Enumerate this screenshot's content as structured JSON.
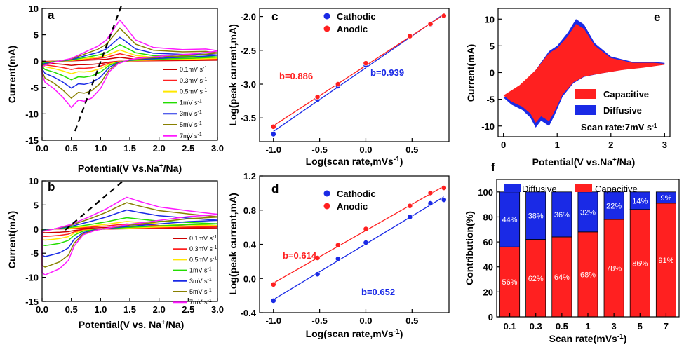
{
  "colors": {
    "red": "#ff2020",
    "blue": "#1a2ae6",
    "yellow": "#ffe800",
    "green": "#22dd00",
    "olive": "#888000",
    "magenta": "#ff1aff",
    "darkred": "#cc0000"
  },
  "chart_data": [
    {
      "panel": "a",
      "type": "line",
      "xlabel_pre": "Potential(V Vs.Na",
      "xlabel_sup": "+",
      "xlabel_post": "/Na)",
      "ylabel": "Current(mA)",
      "xlim": [
        0.0,
        3.0
      ],
      "ylim": [
        -15,
        10
      ],
      "xticks": [
        "0.0",
        "0.5",
        "1.0",
        "1.5",
        "2.0",
        "2.5",
        "3.0"
      ],
      "yticks": [
        "-15",
        "-10",
        "-5",
        "0",
        "5",
        "10"
      ],
      "series": [
        {
          "name": "0.1mV s",
          "sup": "-1",
          "color": "#cc0000",
          "scale": 0.09
        },
        {
          "name": "0.3mV s",
          "sup": "-1",
          "color": "#ff2020",
          "scale": 0.18
        },
        {
          "name": "0.5mV s",
          "sup": "-1",
          "color": "#ffe800",
          "scale": 0.27
        },
        {
          "name": "1mV s",
          "sup": "-1",
          "color": "#22dd00",
          "scale": 0.4
        },
        {
          "name": "3mV s",
          "sup": "-1",
          "color": "#1a2ae6",
          "scale": 0.58
        },
        {
          "name": "5mV s",
          "sup": "-1",
          "color": "#888000",
          "scale": 0.8
        },
        {
          "name": "7mV s",
          "sup": "-1",
          "color": "#ff1aff",
          "scale": 1.0
        }
      ]
    },
    {
      "panel": "b",
      "type": "line",
      "xlabel_pre": "Potential(V vs. Na",
      "xlabel_sup": "+",
      "xlabel_post": "/Na)",
      "ylabel": "Current(mA)",
      "xlim": [
        0.0,
        3.0
      ],
      "ylim": [
        -15,
        10
      ],
      "xticks": [
        "0.0",
        "0.5",
        "1.0",
        "1.5",
        "2.0",
        "2.5",
        "3.0"
      ],
      "yticks": [
        "-15",
        "-10",
        "-5",
        "0",
        "5",
        "10"
      ],
      "series": [
        {
          "name": "0.1mV s",
          "sup": "-1",
          "color": "#cc0000",
          "scale": 0.08
        },
        {
          "name": "0.3mV s",
          "sup": "-1",
          "color": "#ff2020",
          "scale": 0.16
        },
        {
          "name": "0.5mV s",
          "sup": "-1",
          "color": "#ffe800",
          "scale": 0.24
        },
        {
          "name": "1mV s",
          "sup": "-1",
          "color": "#22dd00",
          "scale": 0.36
        },
        {
          "name": "3mV s",
          "sup": "-1",
          "color": "#1a2ae6",
          "scale": 0.6
        },
        {
          "name": "5mV s",
          "sup": "-1",
          "color": "#888000",
          "scale": 0.83
        },
        {
          "name": "7mV s",
          "sup": "-1",
          "color": "#ff1aff",
          "scale": 1.0
        }
      ]
    },
    {
      "panel": "c",
      "type": "scatter",
      "xlabel_pre": "Log(scan rate,mVs",
      "xlabel_sup": "-1",
      "xlabel_post": ")",
      "ylabel": "Log(peak current,mA)",
      "xlim": [
        -1.15,
        0.9
      ],
      "ylim": [
        -3.85,
        -1.88
      ],
      "xticks": [
        "-1.0",
        "-0.5",
        "0.0",
        "0.5"
      ],
      "xtick_values": [
        -1.0,
        -0.5,
        0.0,
        0.5
      ],
      "yticks": [
        "-3.5",
        "-3.0",
        "-2.5",
        "-2.0"
      ],
      "ytick_values": [
        -3.5,
        -3.0,
        -2.5,
        -2.0
      ],
      "series": [
        {
          "name": "Cathodic",
          "color": "#1a2ae6",
          "x": [
            -1.0,
            -0.523,
            -0.301,
            0.0,
            0.477,
            0.699,
            0.845
          ],
          "y": [
            -3.74,
            -3.23,
            -3.03,
            -2.72,
            -2.29,
            -2.12,
            -1.99
          ]
        },
        {
          "name": "Anodic",
          "color": "#ff2020",
          "x": [
            -1.0,
            -0.523,
            -0.301,
            0.0,
            0.477,
            0.699,
            0.845
          ],
          "y": [
            -3.63,
            -3.19,
            -3.0,
            -2.69,
            -2.29,
            -2.11,
            -1.99
          ]
        }
      ],
      "annotations": [
        {
          "text": "b=0.886",
          "color": "#ff2020"
        },
        {
          "text": "b=0.939",
          "color": "#1a2ae6"
        }
      ]
    },
    {
      "panel": "d",
      "type": "scatter",
      "xlabel_pre": "Log(scan rate,mVs",
      "xlabel_sup": "-1",
      "xlabel_post": ")",
      "ylabel": "Log(peak current,mA)",
      "xlim": [
        -1.15,
        0.9
      ],
      "ylim": [
        -0.4,
        1.2
      ],
      "xticks": [
        "-1.0",
        "-0.5",
        "0.0",
        "0.5"
      ],
      "xtick_values": [
        -1.0,
        -0.5,
        0.0,
        0.5
      ],
      "yticks": [
        "-0.4",
        "0.0",
        "0.4",
        "0.8",
        "1.2"
      ],
      "ytick_values": [
        -0.4,
        0.0,
        0.4,
        0.8,
        1.2
      ],
      "series": [
        {
          "name": "Cathodic",
          "color": "#1a2ae6",
          "x": [
            -1.0,
            -0.523,
            -0.301,
            0.0,
            0.477,
            0.699,
            0.845
          ],
          "y": [
            -0.26,
            0.05,
            0.23,
            0.42,
            0.72,
            0.88,
            0.92
          ]
        },
        {
          "name": "Anodic",
          "color": "#ff2020",
          "x": [
            -1.0,
            -0.523,
            -0.301,
            0.0,
            0.477,
            0.699,
            0.845
          ],
          "y": [
            -0.07,
            0.24,
            0.39,
            0.58,
            0.85,
            1.0,
            1.06
          ]
        }
      ],
      "annotations": [
        {
          "text": "b=0.614",
          "color": "#ff2020"
        },
        {
          "text": "b=0.652",
          "color": "#1a2ae6"
        }
      ]
    },
    {
      "panel": "e",
      "type": "area",
      "xlabel_pre": "Potential(V vs.Na",
      "xlabel_sup": "+",
      "xlabel_post": "/Na)",
      "ylabel": "Current(mA)",
      "xlim": [
        -0.1,
        3.1
      ],
      "ylim": [
        -12,
        12
      ],
      "xticks": [
        "0",
        "1",
        "2",
        "3"
      ],
      "xtick_values": [
        0,
        1,
        2,
        3
      ],
      "yticks": [
        "-10",
        "-5",
        "0",
        "5",
        "10"
      ],
      "ytick_values": [
        -10,
        -5,
        0,
        5,
        10
      ],
      "legend": [
        {
          "name": "Capacitive",
          "color": "#ff2020"
        },
        {
          "name": "Diffusive",
          "color": "#1a2ae6"
        }
      ],
      "note": "Scan rate:7mV s",
      "note_sup": "-1"
    },
    {
      "panel": "f",
      "type": "bar",
      "xlabel_pre": "Scan rate(mVs",
      "xlabel_sup": "-1",
      "xlabel_post": ")",
      "ylabel": "Contribution(%)",
      "ylim": [
        0,
        110
      ],
      "yticks": [
        "0",
        "20",
        "40",
        "60",
        "80",
        "100"
      ],
      "ytick_values": [
        0,
        20,
        40,
        60,
        80,
        100
      ],
      "categories": [
        "0.1",
        "0.3",
        "0.5",
        "1",
        "3",
        "5",
        "7"
      ],
      "series": [
        {
          "name": "Capacitive",
          "color": "#ff2020",
          "values": [
            56,
            62,
            64,
            68,
            78,
            86,
            91
          ]
        },
        {
          "name": "Diffusive",
          "color": "#1a2ae6",
          "values": [
            44,
            38,
            36,
            32,
            22,
            14,
            9
          ]
        }
      ],
      "labels_capacitive": [
        "56%",
        "62%",
        "64%",
        "68%",
        "78%",
        "86%",
        "91%"
      ],
      "labels_diffusive": [
        "44%",
        "38%",
        "36%",
        "32%",
        "22%",
        "14%",
        "9%"
      ]
    }
  ]
}
